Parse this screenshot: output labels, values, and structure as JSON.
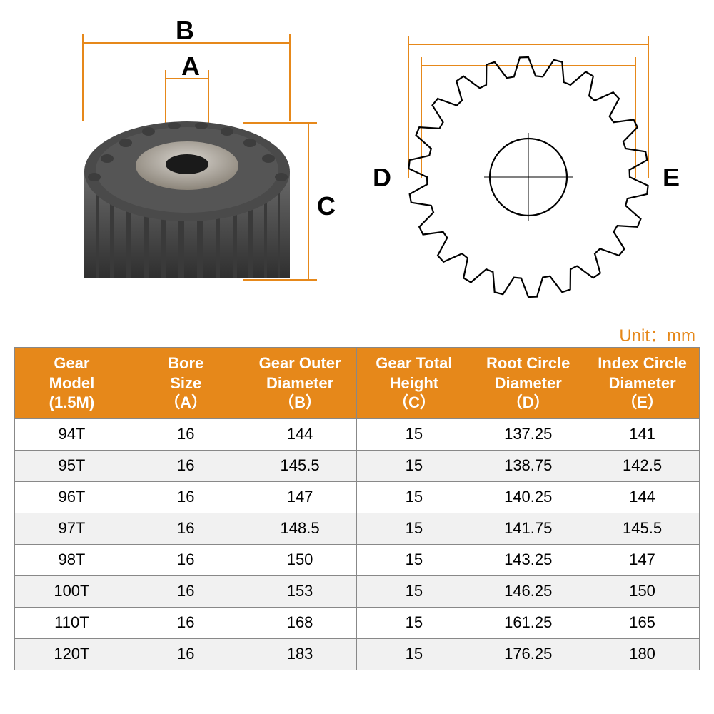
{
  "diagram": {
    "labels": {
      "A": "A",
      "B": "B",
      "C": "C",
      "D": "D",
      "E": "E"
    },
    "accent_color": "#e6881a",
    "line_color": "#000000",
    "label_fontsize": 36
  },
  "unit_label": "Unit：mm",
  "table": {
    "header_bg": "#e6881a",
    "header_fg": "#ffffff",
    "border_color": "#888888",
    "alt_row_bg": "#f1f1f1",
    "fontsize": 22,
    "columns": [
      {
        "line1": "Gear",
        "line2": "Model",
        "line3": "(1.5M)"
      },
      {
        "line1": "Bore",
        "line2": "Size",
        "line3": "（A）"
      },
      {
        "line1": "Gear Outer",
        "line2": "Diameter",
        "line3": "（B）"
      },
      {
        "line1": "Gear Total",
        "line2": "Height",
        "line3": "（C）"
      },
      {
        "line1": "Root Circle",
        "line2": "Diameter",
        "line3": "（D）"
      },
      {
        "line1": "Index Circle",
        "line2": "Diameter",
        "line3": "（E）"
      }
    ],
    "rows": [
      [
        "94T",
        "16",
        "144",
        "15",
        "137.25",
        "141"
      ],
      [
        "95T",
        "16",
        "145.5",
        "15",
        "138.75",
        "142.5"
      ],
      [
        "96T",
        "16",
        "147",
        "15",
        "140.25",
        "144"
      ],
      [
        "97T",
        "16",
        "148.5",
        "15",
        "141.75",
        "145.5"
      ],
      [
        "98T",
        "16",
        "150",
        "15",
        "143.25",
        "147"
      ],
      [
        "100T",
        "16",
        "153",
        "15",
        "146.25",
        "150"
      ],
      [
        "110T",
        "16",
        "168",
        "15",
        "161.25",
        "165"
      ],
      [
        "120T",
        "16",
        "183",
        "15",
        "176.25",
        "180"
      ]
    ]
  }
}
